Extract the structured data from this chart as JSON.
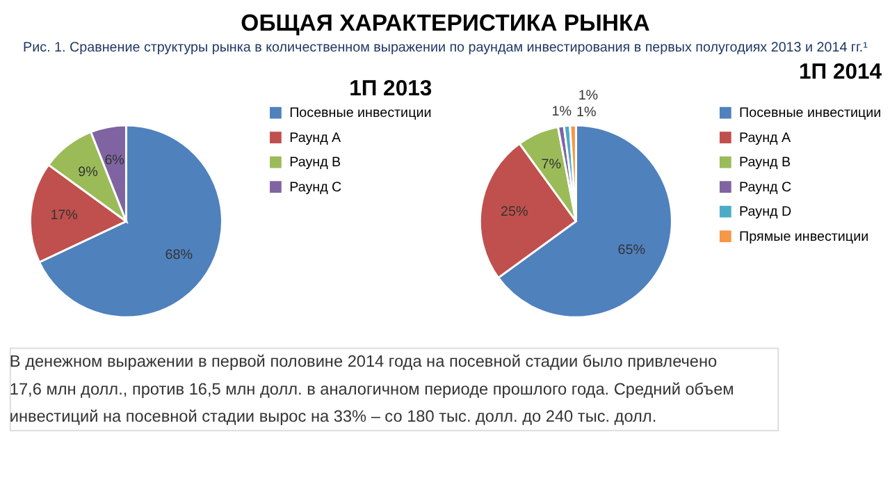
{
  "chart_data": [
    {
      "type": "pie",
      "title": "1П 2013",
      "legend": "right",
      "annotations": [
        "ОБЩАЯ ХАРАКТЕРИСТИКА РЫНКА",
        "Рис. 1. Сравнение структуры рынка в количественном выражении по раундам инвестирования в первых полугодиях 2013 и 2014 гг.¹"
      ],
      "categories": [
        "Посевные инвестиции",
        "Раунд А",
        "Раунд В",
        "Раунд С"
      ],
      "values": [
        68,
        17,
        9,
        6
      ],
      "value_labels": [
        "68%",
        "17%",
        "9%",
        "6%"
      ],
      "colors": [
        "#4f81bd",
        "#c0504d",
        "#9bbb59",
        "#8064a2"
      ]
    },
    {
      "type": "pie",
      "title": "1П 2014",
      "legend": "right",
      "annotations": [
        "В денежном выражении в первой половине 2014 года на посевной стадии было привлечено",
        "17,6 млн долл., против 16,5 млн долл. в аналогичном периоде прошлого года. Средний объем",
        "инвестиций на посевной стадии вырос на 33% – со 180 тыс. долл. до 240 тыс. долл."
      ],
      "categories": [
        "Посевные инвестиции",
        "Раунд А",
        "Раунд В",
        "Раунд С",
        "Раунд D",
        "Прямые инвестиции"
      ],
      "values": [
        65,
        25,
        7,
        1,
        1,
        1
      ],
      "value_labels": [
        "65%",
        "25%",
        "7%",
        "1%",
        "1%",
        "1%"
      ],
      "colors": [
        "#4f81bd",
        "#c0504d",
        "#9bbb59",
        "#8064a2",
        "#4bacc6",
        "#f79646"
      ]
    }
  ]
}
